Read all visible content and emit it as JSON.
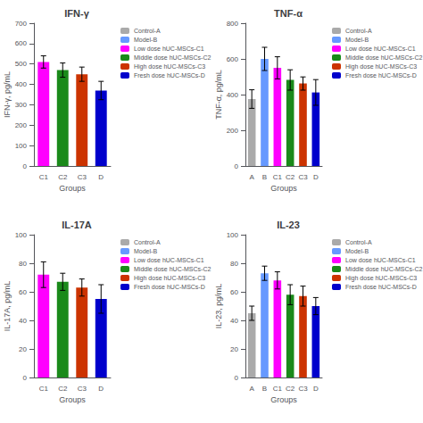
{
  "chart_data": [
    {
      "type": "bar",
      "title": "IFN-γ",
      "xlabel": "Groups",
      "ylabel": "IFN-γ, pg/mL",
      "categories": [
        "C1",
        "C2",
        "C3",
        "D"
      ],
      "series": [
        {
          "name": "Control-A",
          "color": "#AAAAAA",
          "values": [
            null,
            null,
            null,
            null
          ],
          "errors": [
            null,
            null,
            null,
            null
          ]
        },
        {
          "name": "Model-B",
          "color": "#6699FF",
          "values": [
            null,
            null,
            null,
            null
          ],
          "errors": [
            null,
            null,
            null,
            null
          ]
        },
        {
          "name": "Low dose hUC-MSCs-C1",
          "color": "#FF00FF",
          "values": [
            510,
            null,
            null,
            null
          ],
          "errors": [
            30,
            null,
            null,
            null
          ]
        },
        {
          "name": "Middle dose hUC-MSCs-C2",
          "color": "#1A8A1A",
          "values": [
            null,
            470,
            null,
            null
          ],
          "errors": [
            null,
            35,
            null,
            null
          ]
        },
        {
          "name": "High dose hUC-MSCs-C3",
          "color": "#CC3300",
          "values": [
            null,
            null,
            450,
            null
          ],
          "errors": [
            null,
            null,
            35,
            null
          ]
        },
        {
          "name": "Fresh dose hUC-MSCs-D",
          "color": "#0000CC",
          "values": [
            null,
            null,
            null,
            370
          ],
          "errors": [
            null,
            null,
            null,
            45
          ]
        }
      ],
      "ylim": [
        0,
        700
      ],
      "yticks": [
        0,
        100,
        200,
        300,
        400,
        500,
        600,
        700
      ],
      "grid": false,
      "legend": "right"
    },
    {
      "type": "bar",
      "title": "TNF-α",
      "xlabel": "Groups",
      "ylabel": "TNF-α, pg/mL",
      "categories": [
        "A",
        "B",
        "C1",
        "C2",
        "C3",
        "D"
      ],
      "series": [
        {
          "name": "Control-A",
          "color": "#AAAAAA",
          "values": [
            375,
            null,
            null,
            null,
            null,
            null
          ],
          "errors": [
            52,
            null,
            null,
            null,
            null,
            null
          ]
        },
        {
          "name": "Model-B",
          "color": "#6699FF",
          "values": [
            null,
            600,
            null,
            null,
            null,
            null
          ],
          "errors": [
            null,
            65,
            null,
            null,
            null,
            null
          ]
        },
        {
          "name": "Low dose hUC-MSCs-C1",
          "color": "#FF00FF",
          "values": [
            null,
            null,
            550,
            null,
            null,
            null
          ],
          "errors": [
            null,
            null,
            62,
            null,
            null,
            null
          ]
        },
        {
          "name": "Middle dose hUC-MSCs-C2",
          "color": "#1A8A1A",
          "values": [
            null,
            null,
            null,
            482,
            null,
            null
          ],
          "errors": [
            null,
            null,
            null,
            57,
            null,
            null
          ]
        },
        {
          "name": "High dose hUC-MSCs-C3",
          "color": "#CC3300",
          "values": [
            null,
            null,
            null,
            null,
            462,
            null
          ],
          "errors": [
            null,
            null,
            null,
            null,
            37,
            null
          ]
        },
        {
          "name": "Fresh dose hUC-MSCs-D",
          "color": "#0000CC",
          "values": [
            null,
            null,
            null,
            null,
            null,
            412
          ],
          "errors": [
            null,
            null,
            null,
            null,
            null,
            72
          ]
        }
      ],
      "ylim": [
        0,
        800
      ],
      "yticks": [
        0,
        200,
        400,
        600,
        800
      ],
      "grid": false,
      "legend": "right"
    },
    {
      "type": "bar",
      "title": "IL-17A",
      "xlabel": "Groups",
      "ylabel": "IL-17A, pg/mL",
      "categories": [
        "C1",
        "C2",
        "C3",
        "D"
      ],
      "series": [
        {
          "name": "Control-A",
          "color": "#AAAAAA",
          "values": [
            null,
            null,
            null,
            null
          ],
          "errors": [
            null,
            null,
            null,
            null
          ]
        },
        {
          "name": "Model-B",
          "color": "#6699FF",
          "values": [
            null,
            null,
            null,
            null
          ],
          "errors": [
            null,
            null,
            null,
            null
          ]
        },
        {
          "name": "Low dose hUC-MSCs-C1",
          "color": "#FF00FF",
          "values": [
            72,
            null,
            null,
            null
          ],
          "errors": [
            9,
            null,
            null,
            null
          ]
        },
        {
          "name": "Middle dose hUC-MSCs-C2",
          "color": "#1A8A1A",
          "values": [
            null,
            67,
            null,
            null
          ],
          "errors": [
            null,
            6,
            null,
            null
          ]
        },
        {
          "name": "High dose hUC-MSCs-C3",
          "color": "#CC3300",
          "values": [
            null,
            null,
            63,
            null
          ],
          "errors": [
            null,
            null,
            6,
            null
          ]
        },
        {
          "name": "Fresh dose hUC-MSCs-D",
          "color": "#0000CC",
          "values": [
            null,
            null,
            null,
            55
          ],
          "errors": [
            null,
            null,
            null,
            10
          ]
        }
      ],
      "ylim": [
        0,
        100
      ],
      "yticks": [
        0,
        20,
        40,
        60,
        80,
        100
      ],
      "grid": false,
      "legend": "right"
    },
    {
      "type": "bar",
      "title": "IL-23",
      "xlabel": "Groups",
      "ylabel": "IL-23, pg/mL",
      "categories": [
        "A",
        "B",
        "C1",
        "C2",
        "C3",
        "D"
      ],
      "series": [
        {
          "name": "Control-A",
          "color": "#AAAAAA",
          "values": [
            45,
            null,
            null,
            null,
            null,
            null
          ],
          "errors": [
            5,
            null,
            null,
            null,
            null,
            null
          ]
        },
        {
          "name": "Model-B",
          "color": "#6699FF",
          "values": [
            null,
            73,
            null,
            null,
            null,
            null
          ],
          "errors": [
            null,
            5,
            null,
            null,
            null,
            null
          ]
        },
        {
          "name": "Low dose hUC-MSCs-C1",
          "color": "#FF00FF",
          "values": [
            null,
            null,
            68,
            null,
            null,
            null
          ],
          "errors": [
            null,
            null,
            6,
            null,
            null,
            null
          ]
        },
        {
          "name": "Middle dose hUC-MSCs-C2",
          "color": "#1A8A1A",
          "values": [
            null,
            null,
            null,
            58,
            null,
            null
          ],
          "errors": [
            null,
            null,
            null,
            7,
            null,
            null
          ]
        },
        {
          "name": "High dose hUC-MSCs-C3",
          "color": "#CC3300",
          "values": [
            null,
            null,
            null,
            null,
            57,
            null
          ],
          "errors": [
            null,
            null,
            null,
            null,
            7,
            null
          ]
        },
        {
          "name": "Fresh dose hUC-MSCs-D",
          "color": "#0000CC",
          "values": [
            null,
            null,
            null,
            null,
            null,
            50
          ],
          "errors": [
            null,
            null,
            null,
            null,
            null,
            6
          ]
        }
      ],
      "ylim": [
        0,
        100
      ],
      "yticks": [
        0,
        20,
        40,
        60,
        80,
        100
      ],
      "grid": false,
      "legend": "right"
    }
  ]
}
